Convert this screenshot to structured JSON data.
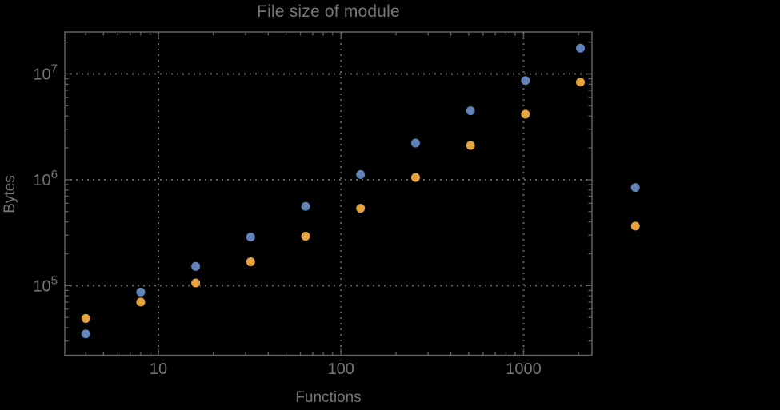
{
  "chart_data": {
    "type": "scatter",
    "title": "File size of module",
    "xlabel": "Functions",
    "ylabel": "Bytes",
    "x_scale": "log",
    "y_scale": "log",
    "xlim": [
      3.07,
      2370
    ],
    "ylim": [
      22000,
      24900000
    ],
    "grid": {
      "style": "dotted",
      "x_values": [
        10,
        100,
        1000
      ],
      "y_values": [
        100000,
        1000000,
        10000000
      ]
    },
    "legend_position": "none",
    "x": [
      4,
      8,
      16,
      32,
      64,
      128,
      256,
      512,
      1024,
      2048,
      4096
    ],
    "series": [
      {
        "name": "blue",
        "color": "#6183b8",
        "values": [
          35000,
          87000,
          152000,
          288000,
          560000,
          1120000,
          2220000,
          4480000,
          8670000,
          17500000,
          845000
        ]
      },
      {
        "name": "orange",
        "color": "#e5a33e",
        "values": [
          49000,
          70000,
          106000,
          168000,
          293000,
          538000,
          1050000,
          2110000,
          4160000,
          8370000,
          365000
        ]
      }
    ],
    "x_ticks": {
      "values": [
        10,
        100,
        1000
      ],
      "labels": [
        "10",
        "100",
        "1000"
      ]
    },
    "y_ticks": {
      "values": [
        100000,
        1000000,
        10000000
      ],
      "labels": [
        {
          "mantissa": "10",
          "exponent": "5"
        },
        {
          "mantissa": "10",
          "exponent": "6"
        },
        {
          "mantissa": "10",
          "exponent": "7"
        }
      ]
    },
    "colors": {
      "background": "#000000",
      "text": "#757575",
      "frame": "#616161",
      "grid": "#636363",
      "series_blue": "#6183b8",
      "series_orange": "#e5a33e"
    }
  }
}
